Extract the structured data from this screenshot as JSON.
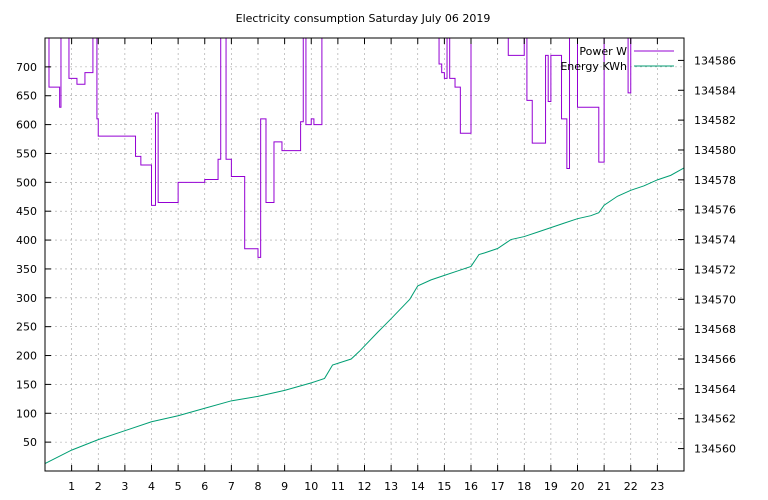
{
  "chart_data": {
    "type": "line",
    "title": "Electricity consumption Saturday July 06 2019",
    "xlabel": "",
    "ylabel": "",
    "y2label": "",
    "grid": true,
    "legend_position": "top-right",
    "xlim": [
      0,
      24
    ],
    "ylim": [
      0,
      750
    ],
    "y2lim": [
      134558.5,
      134587.5
    ],
    "x_ticks": [
      1,
      2,
      3,
      4,
      5,
      6,
      7,
      8,
      9,
      10,
      11,
      12,
      13,
      14,
      15,
      16,
      17,
      18,
      19,
      20,
      21,
      22,
      23
    ],
    "y_ticks": [
      50,
      100,
      150,
      200,
      250,
      300,
      350,
      400,
      450,
      500,
      550,
      600,
      650,
      700
    ],
    "y2_ticks": [
      134560,
      134562,
      134564,
      134566,
      134568,
      134570,
      134572,
      134574,
      134576,
      134578,
      134580,
      134582,
      134584,
      134586
    ],
    "series": [
      {
        "name": "Power W",
        "axis": "left",
        "color": "#9400d3",
        "step": true,
        "x": [
          0.05,
          0.15,
          0.5,
          0.55,
          0.6,
          0.9,
          1.2,
          1.5,
          1.8,
          1.95,
          2.0,
          2.15,
          2.5,
          3.0,
          3.2,
          3.4,
          3.6,
          3.8,
          4.0,
          4.15,
          4.25,
          4.5,
          5.0,
          5.5,
          6.0,
          6.4,
          6.5,
          6.6,
          6.8,
          6.9,
          7.0,
          7.5,
          7.8,
          8.0,
          8.1,
          8.3,
          8.6,
          8.9,
          9.2,
          9.6,
          9.7,
          9.8,
          10.0,
          10.1,
          10.2,
          10.4,
          10.5,
          14.5,
          14.8,
          14.9,
          15.0,
          15.1,
          15.2,
          15.4,
          15.6,
          15.8,
          16.0,
          17.0,
          17.4,
          18.0,
          18.1,
          18.3,
          18.6,
          18.8,
          18.9,
          19.0,
          19.4,
          19.6,
          19.7,
          19.8,
          20.0,
          20.3,
          20.6,
          20.8,
          21.0,
          21.3,
          21.6,
          21.9,
          22.0,
          22.2,
          23.9
        ],
        "values": [
          750,
          665,
          665,
          630,
          750,
          680,
          670,
          690,
          750,
          610,
          580,
          580,
          580,
          580,
          580,
          545,
          530,
          530,
          460,
          620,
          465,
          465,
          500,
          500,
          505,
          505,
          540,
          750,
          540,
          540,
          510,
          385,
          385,
          370,
          610,
          465,
          570,
          555,
          555,
          605,
          750,
          600,
          610,
          600,
          600,
          750,
          750,
          750,
          705,
          690,
          680,
          750,
          680,
          665,
          585,
          585,
          750,
          750,
          720,
          750,
          642,
          568,
          568,
          720,
          640,
          720,
          610,
          524,
          750,
          750,
          630,
          630,
          630,
          535,
          750,
          750,
          750,
          655,
          750,
          750,
          750
        ]
      },
      {
        "name": "Energy KWh",
        "axis": "right",
        "color": "#009e73",
        "step": false,
        "x": [
          0,
          1,
          2,
          3,
          4,
          5,
          6,
          7,
          8,
          9,
          10,
          10.5,
          10.8,
          11.5,
          11.8,
          12.5,
          13,
          13.7,
          14,
          14.5,
          15,
          15.5,
          16,
          16.3,
          16.5,
          17,
          17.5,
          18,
          18.5,
          19,
          19.5,
          20,
          20.5,
          20.8,
          21,
          21.5,
          22,
          22.5,
          23,
          23.5,
          24
        ],
        "values": [
          134559.0,
          134559.9,
          134560.6,
          134561.2,
          134561.8,
          134562.2,
          134562.7,
          134563.2,
          134563.5,
          134563.9,
          134564.4,
          134564.7,
          134565.6,
          134566.0,
          134566.5,
          134567.8,
          134568.7,
          134570.0,
          134570.9,
          134571.3,
          134571.6,
          134571.9,
          134572.2,
          134573.0,
          134573.1,
          134573.4,
          134574.0,
          134574.2,
          134574.5,
          134574.8,
          134575.1,
          134575.4,
          134575.6,
          134575.8,
          134576.3,
          134576.9,
          134577.3,
          134577.6,
          134578.0,
          134578.3,
          134578.8
        ]
      }
    ]
  }
}
